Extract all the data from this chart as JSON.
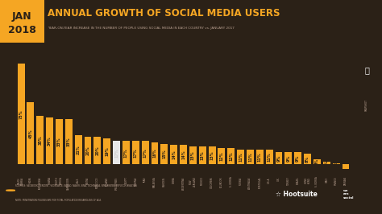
{
  "title": "ANNUAL GROWTH OF SOCIAL MEDIA USERS",
  "subtitle": "YEAR-ON-YEAR INCREASE IN THE NUMBER OF PEOPLE USING SOCIAL MEDIA IN EACH COUNTRY vs. JANUARY 2017",
  "date_line1": "JAN",
  "date_line2": "2018",
  "bg_color": "#2b2117",
  "bar_color": "#f5a623",
  "highlight_bar_color": "#e8e8e8",
  "title_color": "#f5a623",
  "subtitle_color": "#b8a090",
  "date_bg_color": "#f5a623",
  "date_text_color": "#2b2117",
  "label_color": "#f5a623",
  "highlight_label_color": "#cccccc",
  "xtick_color": "#b8a090",
  "footer_color": "#b8a090",
  "footer_sources": "SOURCES: FACEBOOK, TENCENT, VKONTAKTE, KAKAO, NAVER, SINA, TECHINASIA, SIMILARWEB; REPUCOM ANALYSIS",
  "footer_note": "NOTE: PENETRATION FIGURES ARE FOR TOTAL POPULATION REGARDLESS OF AGE.",
  "hootsuite_color": "#ffffff",
  "wearesocial_color": "#ffffff",
  "values": [
    73,
    45,
    35,
    34,
    33,
    33,
    21,
    20,
    20,
    19,
    17,
    17,
    17,
    17,
    16,
    15,
    14,
    14,
    13,
    13,
    13,
    12,
    12,
    11,
    11,
    11,
    11,
    9,
    9,
    9,
    8,
    4,
    2,
    1,
    -3
  ],
  "highlight_index": 10,
  "country_labels": [
    "SAUDI\nARABIA",
    "INDIA",
    "INDONESIA",
    "GHANA",
    "SOUTH\nAFRICA",
    "CAMEROON",
    "U.A.E.",
    "KENYA",
    "MOROCCO",
    "POLAND",
    "PHILIPPINES",
    "EGYPT",
    "NIGERIA",
    "IRAN",
    "MALAYSIA",
    "SWEDEN",
    "CHINA",
    "ARGENTINA",
    "NEW\nZEALAND",
    "MEXICO",
    "COLOMBIA",
    "ECUADOR",
    "S. KOREA",
    "RUSSIA",
    "AUSTRALIA",
    "PORTUGAL",
    "U.S.A.",
    "U.K.",
    "TURKEY",
    "BRAZIL",
    "HONG\nKONG",
    "S. KOREA",
    "ITALY",
    "FRANCE",
    "TAIWAN"
  ]
}
